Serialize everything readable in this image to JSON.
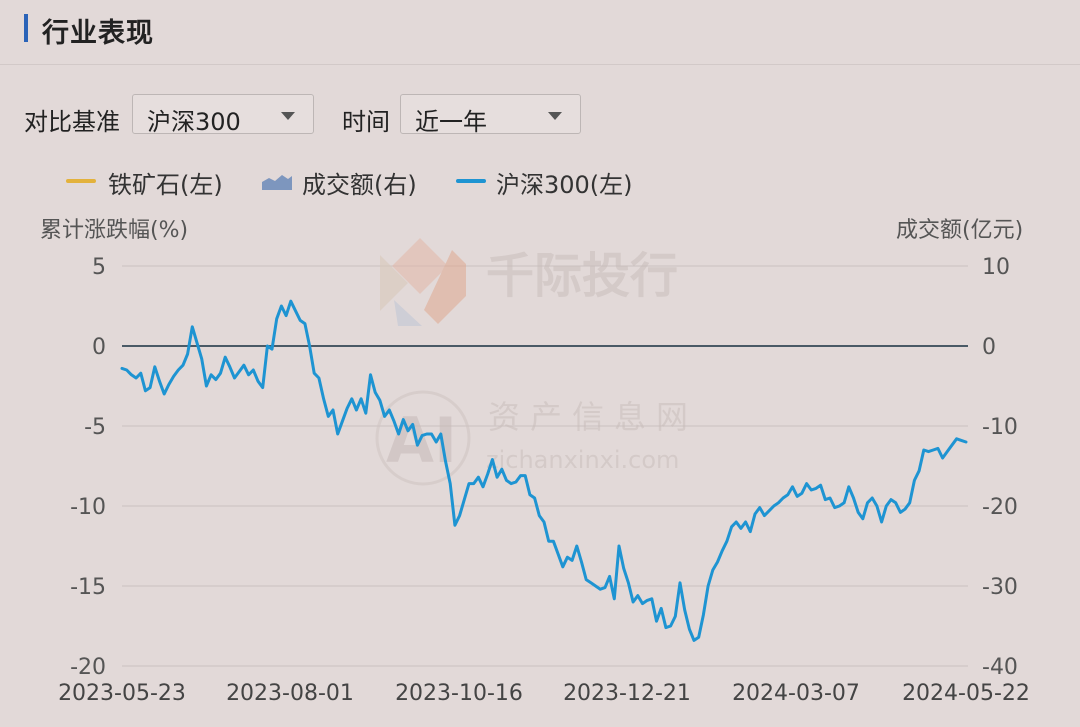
{
  "header": {
    "title": "行业表现"
  },
  "controls": {
    "benchmark_label": "对比基准",
    "benchmark_value": "沪深300",
    "time_label": "时间",
    "time_value": "近一年"
  },
  "legend": {
    "items": [
      {
        "label": "铁矿石(左)",
        "color": "#e3b23c",
        "kind": "line"
      },
      {
        "label": "成交额(右)",
        "color": "#5b7fb5",
        "kind": "area"
      },
      {
        "label": "沪深300(左)",
        "color": "#1e94d2",
        "kind": "line"
      }
    ]
  },
  "watermark": {
    "brand": "千际投行",
    "name": "资产信息网",
    "domain": "zichanxinxi.com",
    "ai": "AI"
  },
  "chart_data": {
    "type": "line",
    "ylabel_left": "累计涨跌幅(%)",
    "ylabel_right": "成交额(亿元)",
    "ylim_left": [
      -20,
      5
    ],
    "ylim_right": [
      -40,
      10
    ],
    "yticks_left": [
      "5",
      "0",
      "-5",
      "-10",
      "-15",
      "-20"
    ],
    "yticks_right": [
      "10",
      "0",
      "-10",
      "-20",
      "-30",
      "-40"
    ],
    "xticks": [
      "2023-05-23",
      "2023-08-01",
      "2023-10-16",
      "2023-12-21",
      "2024-03-07",
      "2024-05-22"
    ],
    "grid": true,
    "series_color": "#1e94d2",
    "series": [
      {
        "name": "沪深300(左)",
        "values": [
          -1.4,
          -1.5,
          -1.8,
          -2.0,
          -1.7,
          -2.8,
          -2.6,
          -1.3,
          -2.2,
          -3.0,
          -2.4,
          -1.9,
          -1.5,
          -1.2,
          -0.5,
          1.2,
          0.2,
          -0.8,
          -2.5,
          -1.8,
          -2.1,
          -1.7,
          -0.7,
          -1.3,
          -2.0,
          -1.6,
          -1.2,
          -1.8,
          -1.5,
          -2.2,
          -2.6,
          0.0,
          -0.2,
          1.7,
          2.5,
          1.9,
          2.8,
          2.2,
          1.6,
          1.4,
          0.0,
          -1.7,
          -2.0,
          -3.3,
          -4.4,
          -4.0,
          -5.5,
          -4.7,
          -3.9,
          -3.3,
          -4.0,
          -3.3,
          -4.2,
          -1.8,
          -2.9,
          -3.4,
          -4.4,
          -4.0,
          -4.7,
          -5.5,
          -4.6,
          -5.3,
          -4.9,
          -6.2,
          -5.6,
          -5.5,
          -5.5,
          -6.0,
          -5.5,
          -7.2,
          -8.6,
          -11.2,
          -10.6,
          -9.6,
          -8.6,
          -8.6,
          -8.2,
          -8.8,
          -8.0,
          -7.1,
          -8.2,
          -7.7,
          -8.4,
          -8.6,
          -8.5,
          -8.1,
          -8.1,
          -9.3,
          -9.5,
          -10.6,
          -11.0,
          -12.2,
          -12.2,
          -13.0,
          -13.8,
          -13.2,
          -13.4,
          -12.5,
          -13.5,
          -14.6,
          -14.8,
          -15.0,
          -15.2,
          -15.1,
          -14.4,
          -15.8,
          -12.5,
          -13.9,
          -14.8,
          -16.0,
          -15.6,
          -16.1,
          -15.9,
          -15.8,
          -17.2,
          -16.4,
          -17.6,
          -17.5,
          -16.9,
          -14.8,
          -16.5,
          -17.7,
          -18.4,
          -18.2,
          -16.8,
          -15.0,
          -14.0,
          -13.5,
          -12.8,
          -12.2,
          -11.3,
          -11.0,
          -11.4,
          -11.0,
          -11.6,
          -10.5,
          -10.1,
          -10.6,
          -10.3,
          -10.0,
          -9.8,
          -9.5,
          -9.3,
          -8.8,
          -9.4,
          -9.2,
          -8.6,
          -9.0,
          -8.9,
          -8.7,
          -9.6,
          -9.5,
          -10.1,
          -10.0,
          -9.8,
          -8.8,
          -9.5,
          -10.4,
          -10.8,
          -9.8,
          -9.5,
          -10.0,
          -11.0,
          -10.0,
          -9.6,
          -9.8,
          -10.4,
          -10.2,
          -9.8,
          -8.4,
          -7.8,
          -6.5,
          -6.6,
          -6.5,
          -6.4,
          -7.0,
          -6.6,
          -6.2,
          -5.8,
          -5.9,
          -6.0
        ]
      }
    ]
  }
}
